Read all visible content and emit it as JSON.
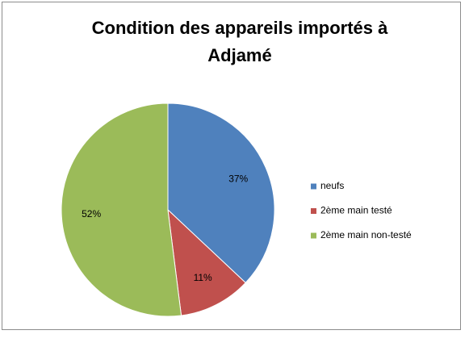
{
  "chart_data": {
    "type": "pie",
    "title": "Condition des appareils importés à Adjamé",
    "categories": [
      "neufs",
      "2ème main testé",
      "2ème main non-testé"
    ],
    "values": [
      37,
      11,
      52
    ],
    "value_labels": [
      "37%",
      "11%",
      "52%"
    ],
    "colors": [
      "#4f81bd",
      "#c0504d",
      "#9bbb59"
    ],
    "legend": "right"
  }
}
